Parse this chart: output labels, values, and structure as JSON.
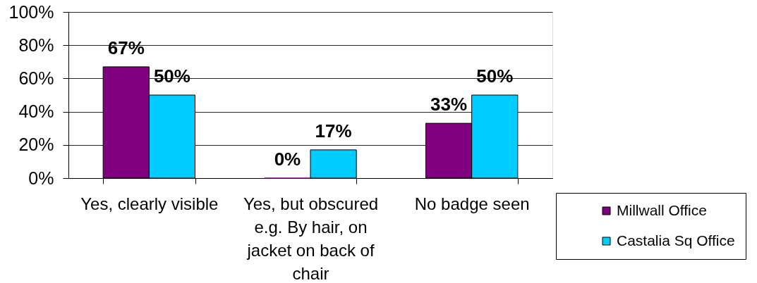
{
  "chart_data": {
    "type": "bar",
    "categories": [
      "Yes, clearly visible",
      "Yes, but obscured e.g. By hair, on jacket on back of chair",
      "No badge seen"
    ],
    "series": [
      {
        "name": "Millwall Office",
        "color": "#800080",
        "values": [
          67,
          0,
          33
        ],
        "value_labels": [
          "67%",
          "0%",
          "33%"
        ]
      },
      {
        "name": "Castalia Sq Office",
        "color": "#00ccff",
        "values": [
          50,
          17,
          50
        ],
        "value_labels": [
          "50%",
          "17%",
          "50%"
        ]
      }
    ],
    "ylim": [
      0,
      100
    ],
    "yticks": [
      {
        "value": 0,
        "label": "0%"
      },
      {
        "value": 20,
        "label": "20%"
      },
      {
        "value": 40,
        "label": "40%"
      },
      {
        "value": 60,
        "label": "60%"
      },
      {
        "value": 80,
        "label": "80%"
      },
      {
        "value": 100,
        "label": "100%"
      }
    ],
    "grid": "y",
    "legend": "bottom right"
  }
}
